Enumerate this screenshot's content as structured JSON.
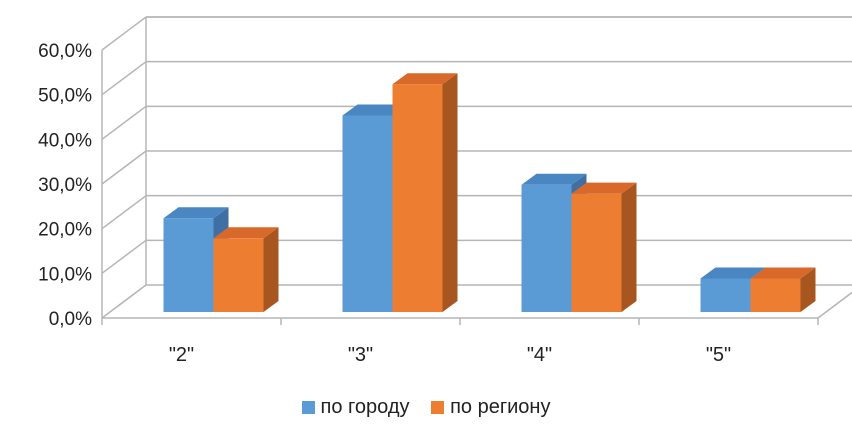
{
  "chart_data": {
    "type": "bar",
    "title": "",
    "xlabel": "",
    "ylabel": "",
    "categories": [
      "\"2\"",
      "\"3\"",
      "\"4\"",
      "\"5\""
    ],
    "series": [
      {
        "name": "по городу",
        "values": [
          21.0,
          44.0,
          28.5,
          7.5
        ]
      },
      {
        "name": "по региону",
        "values": [
          16.5,
          51.0,
          26.5,
          7.5
        ]
      }
    ],
    "ylim": [
      0,
      60
    ],
    "yticks": [
      "0,0%",
      "10,0%",
      "20,0%",
      "30,0%",
      "40,0%",
      "50,0%",
      "60,0%"
    ],
    "grid": true,
    "style": "3d-clustered-column",
    "legend": "bottom",
    "colors": {
      "series1_front": "#5b9bd5",
      "series1_top": "#4a86c2",
      "series1_side": "#3f6fa3",
      "series2_front": "#ed7d31",
      "series2_top": "#d8692a",
      "series2_side": "#a8561f",
      "grid": "#b5b5b5"
    }
  }
}
